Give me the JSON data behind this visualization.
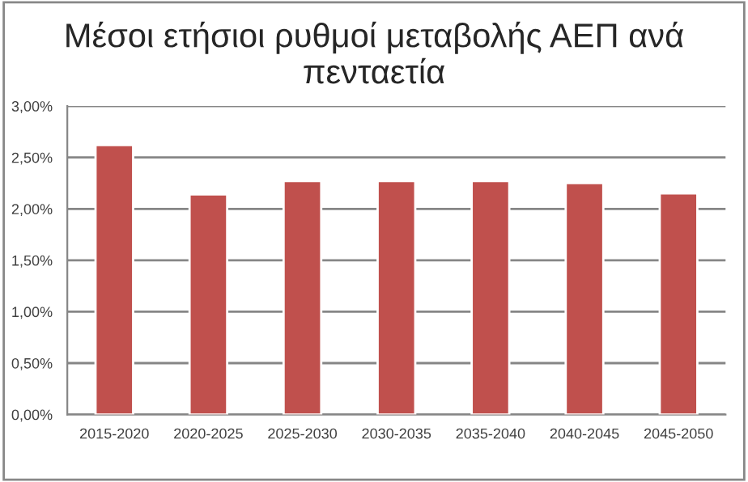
{
  "chart_data": {
    "type": "bar",
    "title": "Μέσοι ετήσιοι ρυθμοί μεταβολής ΑΕΠ ανά πενταετία",
    "categories": [
      "2015-2020",
      "2020-2025",
      "2025-2030",
      "2030-2035",
      "2035-2040",
      "2040-2045",
      "2045-2050"
    ],
    "values": [
      2.62,
      2.14,
      2.27,
      2.27,
      2.27,
      2.25,
      2.15
    ],
    "color": "#c0504d",
    "ylim": [
      0,
      3
    ],
    "yticks": [
      {
        "value": 0,
        "label": "0,00%"
      },
      {
        "value": 0.5,
        "label": "0,50%"
      },
      {
        "value": 1,
        "label": "1,00%"
      },
      {
        "value": 1.5,
        "label": "1,50%"
      },
      {
        "value": 2,
        "label": "2,00%"
      },
      {
        "value": 2.5,
        "label": "2,50%"
      },
      {
        "value": 3,
        "label": "3,00%"
      }
    ],
    "grid": "y",
    "legend": false
  }
}
